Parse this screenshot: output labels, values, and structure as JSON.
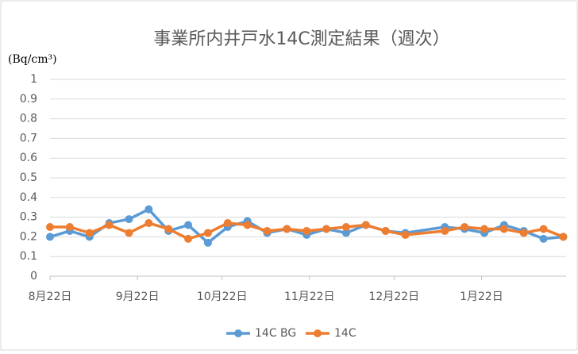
{
  "chart_data": {
    "type": "line",
    "title": "事業所内井戸水14C測定結果（週次）",
    "y_label": "(Bq/cm³)",
    "x": [
      "08-22",
      "08-29",
      "09-05",
      "09-12",
      "09-19",
      "09-26",
      "10-03",
      "10-10",
      "10-17",
      "10-24",
      "10-31",
      "11-07",
      "11-14",
      "11-21",
      "11-28",
      "12-05",
      "12-12",
      "12-19",
      "12-26",
      "01-09",
      "01-16",
      "01-23",
      "01-30",
      "02-06",
      "02-13",
      "02-20"
    ],
    "series": [
      {
        "name": "14C BG",
        "color": "#5b9bd5",
        "values": [
          0.2,
          0.23,
          0.2,
          0.27,
          0.29,
          0.34,
          0.23,
          0.26,
          0.17,
          0.25,
          0.28,
          0.22,
          0.24,
          0.21,
          0.24,
          0.22,
          0.26,
          0.23,
          0.22,
          0.25,
          0.24,
          0.22,
          0.26,
          0.23,
          0.19,
          0.2
        ]
      },
      {
        "name": "14C",
        "color": "#ed7d31",
        "values": [
          0.25,
          0.25,
          0.22,
          0.26,
          0.22,
          0.27,
          0.24,
          0.19,
          0.22,
          0.27,
          0.26,
          0.23,
          0.24,
          0.23,
          0.24,
          0.25,
          0.26,
          0.23,
          0.21,
          0.23,
          0.25,
          0.24,
          0.24,
          0.22,
          0.24,
          0.2
        ]
      }
    ],
    "xlim": [
      "08-22",
      "02-21"
    ],
    "xticks": [
      {
        "value": "08-22",
        "label": "8月22日"
      },
      {
        "value": "09-22",
        "label": "9月22日"
      },
      {
        "value": "10-22",
        "label": "10月22日"
      },
      {
        "value": "11-22",
        "label": "11月22日"
      },
      {
        "value": "12-22",
        "label": "12月22日"
      },
      {
        "value": "01-22",
        "label": "1月22日"
      }
    ],
    "ylim": [
      0,
      1
    ],
    "yticks": [
      0,
      0.1,
      0.2,
      0.3,
      0.4,
      0.5,
      0.6,
      0.7,
      0.8,
      0.9,
      1
    ],
    "grid": true,
    "legend": "bottom"
  }
}
